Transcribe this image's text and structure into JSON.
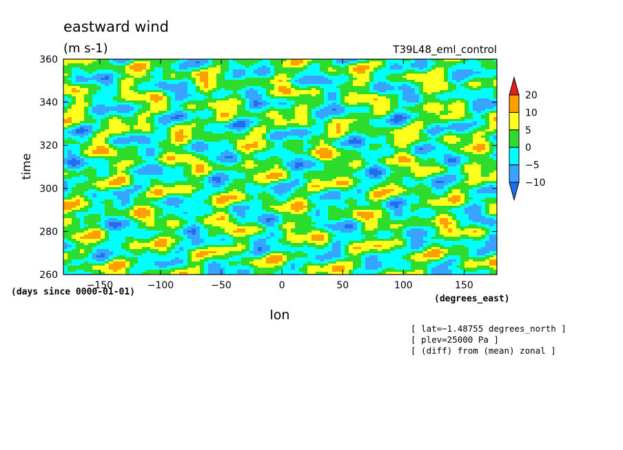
{
  "chart_data": {
    "type": "heatmap",
    "title": "eastward wind",
    "subtitle": "(m s-1)",
    "dataset_label": "T39L48_eml_control",
    "xlabel": "lon",
    "xunits": "(degrees_east)",
    "ylabel": "time",
    "yunits": "(days since 0000-01-01)",
    "xlim": [
      -180,
      177
    ],
    "ylim": [
      260,
      360
    ],
    "x_ticks": [
      -150,
      -100,
      -50,
      0,
      50,
      100,
      150
    ],
    "x_tick_labels": [
      "−150",
      "−100",
      "−50",
      "0",
      "50",
      "100",
      "150"
    ],
    "y_ticks": [
      260,
      280,
      300,
      320,
      340,
      360
    ],
    "y_tick_labels": [
      "260",
      "280",
      "300",
      "320",
      "340",
      "360"
    ],
    "colorbar": {
      "levels": [
        -10,
        -5,
        0,
        5,
        10,
        20
      ],
      "level_labels": [
        "−10",
        "−5",
        "0",
        "5",
        "10",
        "20"
      ],
      "colors": [
        "#1e6ef0",
        "#37a5ff",
        "#00ffff",
        "#2ddc2d",
        "#ffff1e",
        "#ffa000",
        "#e61e1e"
      ],
      "extend": "both"
    },
    "notes": [
      "[ lat=−1.48755 degrees_north ]",
      "[ plev=25000 Pa ]",
      "[ (diff) from (mean) zonal ]"
    ]
  }
}
